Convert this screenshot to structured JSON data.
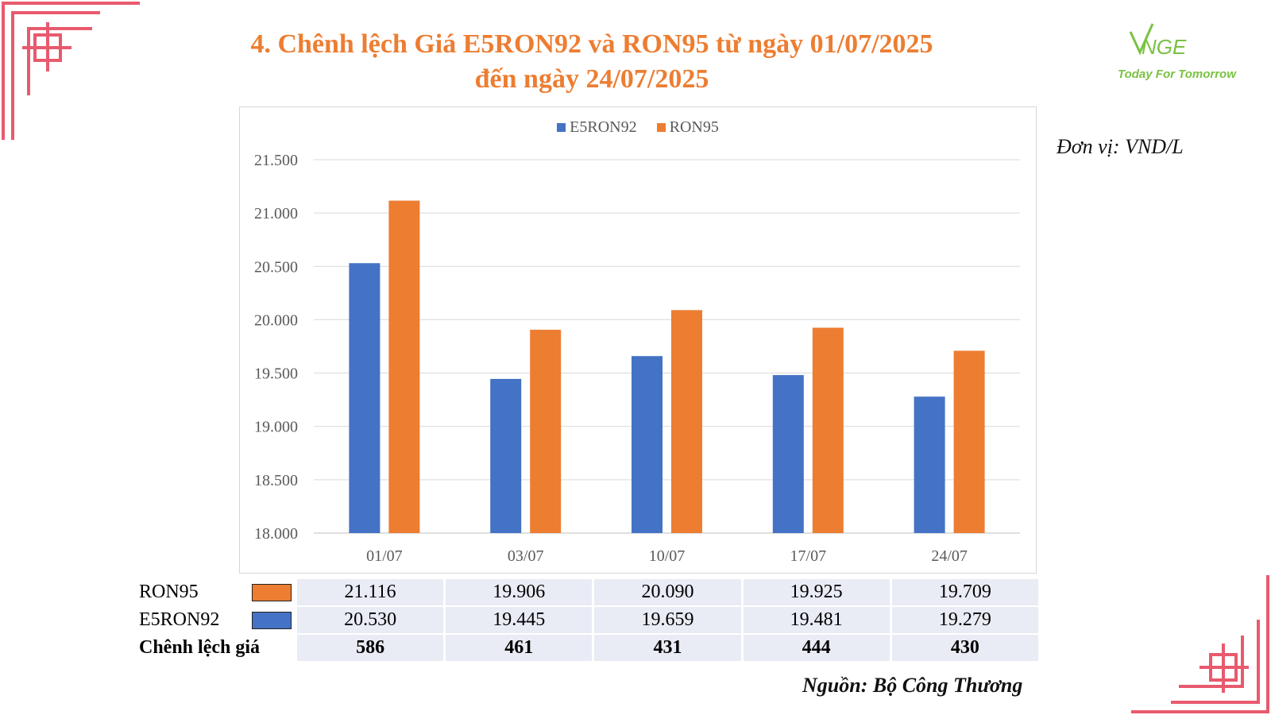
{
  "title": {
    "line1": "4. Chênh lệch Giá E5RON92 và RON95 từ ngày 01/07/2025",
    "line2": "đến ngày 24/07/2025"
  },
  "logo": {
    "brand": "VNGE",
    "tagline": "Today For Tomorrow",
    "color": "#7ac143"
  },
  "unit_label": "Đơn vị: VND/L",
  "source_label": "Nguồn: Bộ Công Thương",
  "colors": {
    "e5ron92": "#4472c4",
    "ron95": "#ed7d31",
    "title": "#ed7d31",
    "corner": "#e85a6e"
  },
  "chart_data": {
    "type": "bar",
    "categories": [
      "01/07",
      "03/07",
      "10/07",
      "17/07",
      "24/07"
    ],
    "series": [
      {
        "name": "E5RON92",
        "values": [
          20530,
          19445,
          19659,
          19481,
          19279
        ],
        "color": "#4472c4"
      },
      {
        "name": "RON95",
        "values": [
          21116,
          19906,
          20090,
          19925,
          19709
        ],
        "color": "#ed7d31"
      }
    ],
    "ylim": [
      18000,
      21500
    ],
    "yticks": [
      18000,
      18500,
      19000,
      19500,
      20000,
      20500,
      21000,
      21500
    ],
    "ytick_labels": [
      "18.000",
      "18.500",
      "19.000",
      "19.500",
      "20.000",
      "20.500",
      "21.000",
      "21.500"
    ],
    "grid": true,
    "legend": "top-center"
  },
  "table": {
    "rows": [
      {
        "label": "RON95",
        "values": [
          "21.116",
          "19.906",
          "20.090",
          "19.925",
          "19.709"
        ]
      },
      {
        "label": "E5RON92",
        "values": [
          "20.530",
          "19.445",
          "19.659",
          "19.481",
          "19.279"
        ]
      },
      {
        "label": "Chênh lệch giá",
        "values": [
          "586",
          "461",
          "431",
          "444",
          "430"
        ]
      }
    ]
  }
}
